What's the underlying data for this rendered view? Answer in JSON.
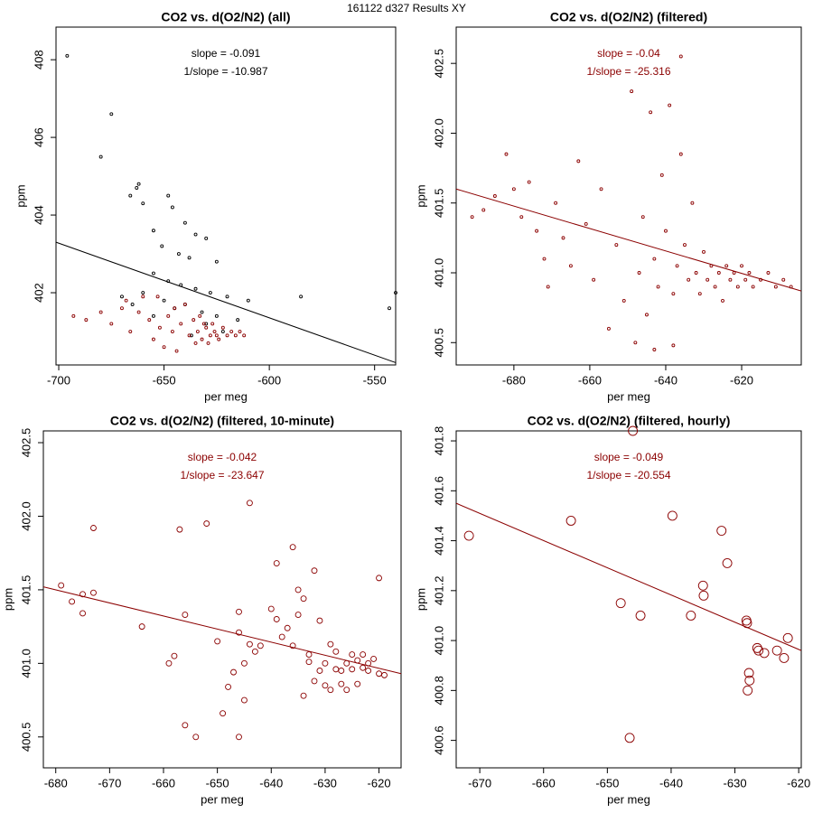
{
  "page_title": "161122   d327   Results XY",
  "chart_data": [
    {
      "type": "scatter",
      "title": "CO2 vs. d(O2/N2) (all)",
      "annotations": [
        "slope = -0.091",
        "1/slope = -10.987"
      ],
      "annotation_color": "#000000",
      "xlabel": "per meg",
      "ylabel": "ppm",
      "xlim": [
        -701.3,
        -540
      ],
      "ylim": [
        400.14,
        408.84
      ],
      "xticks": [
        -700,
        -650,
        -600,
        -550
      ],
      "yticks": [
        402,
        404,
        406,
        408
      ],
      "series": [
        {
          "color": "#000000",
          "x": [
            -696,
            -675,
            -680,
            -662,
            -663,
            -666,
            -660,
            -648,
            -646,
            -655,
            -640,
            -635,
            -630,
            -651,
            -643,
            -638,
            -625,
            -655,
            -648,
            -642,
            -635,
            -628,
            -620,
            -610,
            -585,
            -540,
            -543,
            -660,
            -670,
            -665,
            -650,
            -645,
            -632,
            -625,
            -615,
            -640,
            -655,
            -630,
            -622,
            -637
          ],
          "y": [
            408.1,
            406.6,
            405.5,
            404.8,
            404.7,
            404.5,
            404.3,
            404.5,
            404.2,
            403.6,
            403.8,
            403.5,
            403.4,
            403.2,
            403.0,
            402.9,
            402.8,
            402.5,
            402.3,
            402.2,
            402.1,
            402.0,
            401.9,
            401.8,
            401.9,
            402.0,
            401.6,
            402.0,
            401.9,
            401.7,
            401.8,
            401.6,
            401.5,
            401.4,
            401.3,
            401.7,
            401.4,
            401.2,
            401.0,
            400.9
          ]
        },
        {
          "color": "#8b0000",
          "x": [
            -693,
            -687,
            -680,
            -675,
            -670,
            -666,
            -660,
            -657,
            -655,
            -652,
            -650,
            -648,
            -646,
            -644,
            -642,
            -640,
            -638,
            -636,
            -634,
            -632,
            -630,
            -628,
            -626,
            -624,
            -622,
            -620,
            -618,
            -616,
            -614,
            -612,
            -635,
            -631,
            -629,
            -627,
            -625,
            -633,
            -645,
            -653,
            -662,
            -668
          ],
          "y": [
            401.4,
            401.3,
            401.5,
            401.2,
            401.6,
            401.0,
            401.9,
            401.3,
            400.8,
            401.1,
            400.6,
            401.4,
            401.0,
            400.5,
            401.2,
            401.7,
            400.9,
            401.3,
            401.0,
            400.8,
            401.1,
            400.9,
            401.0,
            400.8,
            401.1,
            400.9,
            401.0,
            400.9,
            401.0,
            400.9,
            400.7,
            401.2,
            400.7,
            401.2,
            400.9,
            401.4,
            401.6,
            401.9,
            401.5,
            401.8
          ]
        }
      ],
      "fit": {
        "color": "#000000",
        "x": [
          -701.3,
          -540
        ],
        "y": [
          403.3,
          400.2
        ]
      }
    },
    {
      "type": "scatter",
      "title": "CO2 vs. d(O2/N2) (filtered)",
      "annotations": [
        "slope = -0.04",
        "1/slope = -25.316"
      ],
      "annotation_color": "#8b0000",
      "xlabel": "per meg",
      "ylabel": "ppm",
      "xlim": [
        -695.2,
        -604.3
      ],
      "ylim": [
        400.34,
        402.76
      ],
      "xticks": [
        -680,
        -660,
        -640,
        -620
      ],
      "yticks": [
        400.5,
        {
          "value": 401,
          "label": "401.0"
        },
        401.5,
        {
          "value": 402,
          "label": "402.0"
        },
        402.5
      ],
      "series": [
        {
          "color": "#8b0000",
          "x": [
            -691,
            -688,
            -685,
            -682,
            -680,
            -678,
            -676,
            -674,
            -672,
            -671,
            -669,
            -667,
            -665,
            -663,
            -661,
            -659,
            -657,
            -655,
            -653,
            -651,
            -649,
            -648,
            -647,
            -646,
            -645,
            -644,
            -643,
            -642,
            -641,
            -640,
            -639,
            -638,
            -637,
            -636,
            -635,
            -634,
            -633,
            -632,
            -631,
            -630,
            -629,
            -628,
            -627,
            -626,
            -625,
            -624,
            -623,
            -622,
            -621,
            -620,
            -619,
            -618,
            -617,
            -615,
            -613,
            -611,
            -609,
            -607,
            -636,
            -643,
            -638
          ],
          "y": [
            401.4,
            401.45,
            401.55,
            401.85,
            401.6,
            401.4,
            401.65,
            401.3,
            401.1,
            400.9,
            401.5,
            401.25,
            401.05,
            401.8,
            401.35,
            400.95,
            401.6,
            400.6,
            401.2,
            400.8,
            402.3,
            400.5,
            401.0,
            401.4,
            400.7,
            402.15,
            401.1,
            400.9,
            401.7,
            401.3,
            402.2,
            400.85,
            401.05,
            402.55,
            401.2,
            400.95,
            401.5,
            401.0,
            400.85,
            401.15,
            400.95,
            401.05,
            400.9,
            401.0,
            400.8,
            401.05,
            400.95,
            401.0,
            400.9,
            401.05,
            400.95,
            401.0,
            400.9,
            400.95,
            401.0,
            400.9,
            400.95,
            400.9,
            401.85,
            400.45,
            400.48
          ]
        }
      ],
      "fit": {
        "color": "#8b0000",
        "x": [
          -695.2,
          -604.3
        ],
        "y": [
          401.6,
          400.87
        ]
      }
    },
    {
      "type": "scatter",
      "title": "CO2 vs. d(O2/N2) (filtered, 10-minute)",
      "annotations": [
        "slope = -0.042",
        "1/slope = -23.647"
      ],
      "annotation_color": "#8b0000",
      "xlabel": "per meg",
      "ylabel": "ppm",
      "xlim": [
        -682.3,
        -615.9
      ],
      "ylim": [
        400.29,
        402.58
      ],
      "xticks": [
        -680,
        -670,
        -660,
        -650,
        -640,
        -630,
        -620
      ],
      "yticks": [
        400.5,
        {
          "value": 401,
          "label": "401.0"
        },
        401.5,
        {
          "value": 402,
          "label": "402.0"
        },
        402.5
      ],
      "series": [
        {
          "color": "#8b0000",
          "x": [
            -679,
            -677,
            -675,
            -675,
            -673,
            -673,
            -664,
            -659,
            -658,
            -657,
            -656,
            -656,
            -654,
            -652,
            -650,
            -649,
            -648,
            -647,
            -646,
            -646,
            -646,
            -645,
            -645,
            -644,
            -644,
            -643,
            -642,
            -640,
            -639,
            -639,
            -638,
            -637,
            -636,
            -636,
            -635,
            -635,
            -634,
            -634,
            -633,
            -633,
            -632,
            -632,
            -631,
            -631,
            -630,
            -630,
            -629,
            -629,
            -628,
            -628,
            -627,
            -627,
            -626,
            -626,
            -625,
            -625,
            -624,
            -624,
            -623,
            -623,
            -622,
            -622,
            -621,
            -620,
            -620,
            -619
          ],
          "y": [
            401.53,
            401.42,
            401.47,
            401.34,
            401.48,
            401.92,
            401.25,
            401.0,
            401.05,
            401.91,
            401.33,
            400.58,
            400.5,
            401.95,
            401.15,
            400.66,
            400.84,
            400.94,
            401.35,
            401.21,
            400.5,
            400.75,
            401.0,
            402.09,
            401.13,
            401.08,
            401.12,
            401.37,
            401.68,
            401.3,
            401.18,
            401.24,
            401.79,
            401.12,
            401.5,
            401.33,
            400.78,
            401.44,
            401.06,
            401.01,
            400.88,
            401.63,
            401.29,
            400.95,
            400.85,
            401.0,
            400.82,
            401.13,
            400.96,
            401.08,
            400.86,
            400.95,
            401.0,
            400.82,
            401.06,
            400.96,
            401.02,
            400.86,
            400.97,
            401.06,
            401.0,
            400.95,
            401.03,
            400.93,
            401.58,
            400.92
          ]
        }
      ],
      "fit": {
        "color": "#8b0000",
        "x": [
          -682.3,
          -615.9
        ],
        "y": [
          401.52,
          400.93
        ]
      }
    },
    {
      "type": "scatter",
      "title": "CO2 vs. d(O2/N2) (filtered, hourly)",
      "annotations": [
        "slope = -0.049",
        "1/slope = -20.554"
      ],
      "annotation_color": "#8b0000",
      "xlabel": "per meg",
      "ylabel": "ppm",
      "xlim": [
        -673.7,
        -619.6
      ],
      "ylim": [
        400.49,
        401.84
      ],
      "xticks": [
        -670,
        -660,
        -650,
        -640,
        -630,
        -620
      ],
      "yticks": [
        400.6,
        400.8,
        {
          "value": 401,
          "label": "401.0"
        },
        401.2,
        401.4,
        401.6,
        401.8
      ],
      "series": [
        {
          "color": "#8b0000",
          "x": [
            -671.7,
            -655.7,
            -647.9,
            -646.5,
            -644.8,
            -646.0,
            -639.8,
            -636.9,
            -635.0,
            -634.9,
            -632.1,
            -631.2,
            -628.2,
            -628.1,
            -627.8,
            -627.7,
            -628.0,
            -626.5,
            -626.3,
            -625.4,
            -623.4,
            -622.3,
            -621.7
          ],
          "y": [
            401.42,
            401.48,
            401.15,
            400.61,
            401.1,
            401.84,
            401.5,
            401.1,
            401.22,
            401.18,
            401.44,
            401.31,
            401.08,
            401.07,
            400.87,
            400.84,
            400.8,
            400.97,
            400.96,
            400.95,
            400.96,
            400.93,
            401.01
          ]
        }
      ],
      "fit": {
        "color": "#8b0000",
        "x": [
          -673.7,
          -619.6
        ],
        "y": [
          401.55,
          400.96
        ]
      }
    }
  ]
}
